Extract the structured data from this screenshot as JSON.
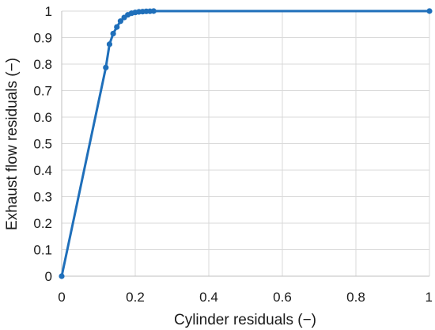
{
  "chart_data": {
    "type": "line",
    "title": "",
    "xlabel": "Cylinder residuals (−)",
    "ylabel": "Exhaust flow residuals (−)",
    "xlim": [
      0,
      1
    ],
    "ylim": [
      0,
      1
    ],
    "x_ticks": [
      "0",
      "0.2",
      "0.4",
      "0.6",
      "0.8",
      "1"
    ],
    "y_ticks": [
      "0",
      "0.1",
      "0.2",
      "0.3",
      "0.4",
      "0.5",
      "0.6",
      "0.7",
      "0.8",
      "0.9",
      "1"
    ],
    "grid": true,
    "line_color": "#1f6fba",
    "grid_color": "#d9d9d9",
    "series": [
      {
        "x": [
          0,
          0.12,
          0.13,
          0.14,
          0.15,
          0.16,
          0.17,
          0.18,
          0.19,
          0.2,
          0.21,
          0.22,
          0.23,
          0.24,
          0.25,
          1.0
        ],
        "y": [
          0,
          0.787,
          0.875,
          0.915,
          0.94,
          0.962,
          0.976,
          0.986,
          0.992,
          0.995,
          0.997,
          0.998,
          0.999,
          0.9995,
          1.0,
          1.0
        ]
      }
    ]
  }
}
